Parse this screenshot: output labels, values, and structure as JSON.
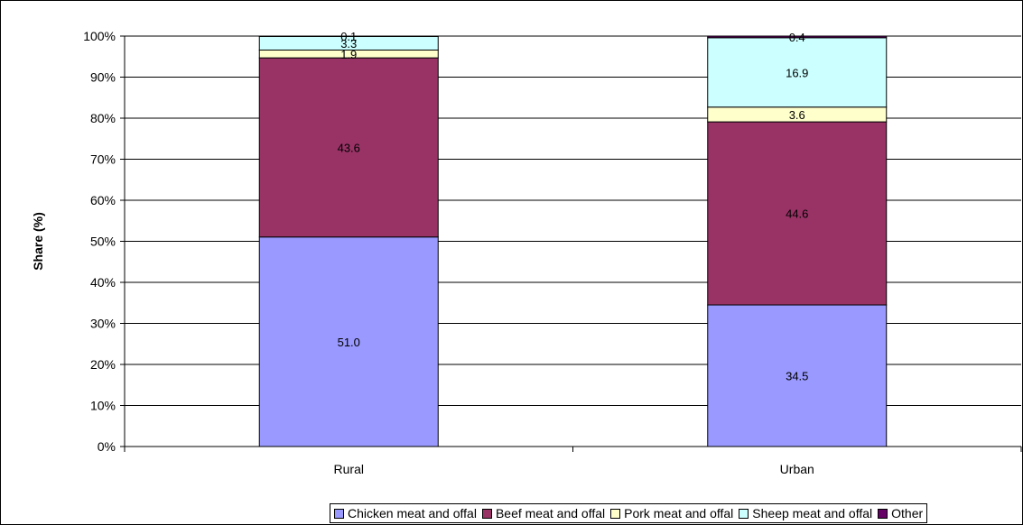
{
  "chart_data": {
    "type": "bar",
    "stacked": "percent",
    "ylabel": "Share (%)",
    "ylim": [
      0,
      100
    ],
    "yticks": [
      "0%",
      "10%",
      "20%",
      "30%",
      "40%",
      "50%",
      "60%",
      "70%",
      "80%",
      "90%",
      "100%"
    ],
    "grid": true,
    "legend_position": "bottom",
    "categories": [
      "Rural",
      "Urban"
    ],
    "series": [
      {
        "name": "Chicken meat and offal",
        "values": [
          51.0,
          34.5
        ],
        "labels": [
          "51.0",
          "34.5"
        ],
        "color": "#9999ff"
      },
      {
        "name": "Beef meat and offal",
        "values": [
          43.6,
          44.6
        ],
        "labels": [
          "43.6",
          "44.6"
        ],
        "color": "#993366"
      },
      {
        "name": "Pork meat and offal",
        "values": [
          1.9,
          3.6
        ],
        "labels": [
          "1.9",
          "3.6"
        ],
        "color": "#ffffcc"
      },
      {
        "name": "Sheep meat and offal",
        "values": [
          3.3,
          16.9
        ],
        "labels": [
          "3.3",
          "16.9"
        ],
        "color": "#ccffff"
      },
      {
        "name": "Other",
        "values": [
          0.1,
          0.4
        ],
        "labels": [
          "0.1",
          "0.4"
        ],
        "color": "#660066"
      }
    ]
  }
}
